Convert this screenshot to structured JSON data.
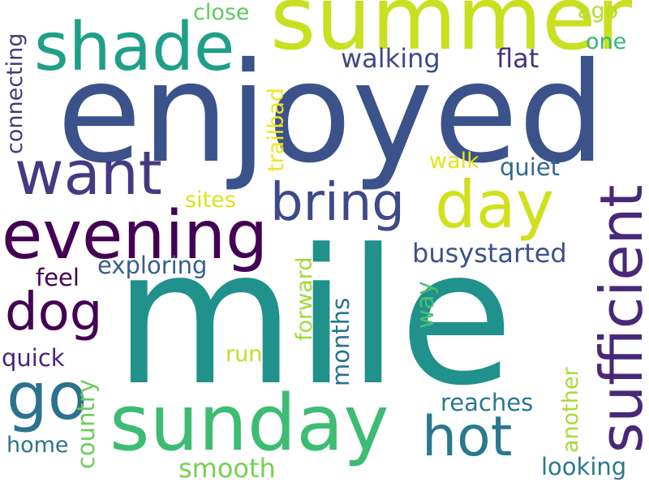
{
  "words": [
    {
      "id": "mile",
      "text": "mile",
      "color": "#21918c"
    },
    {
      "id": "enjoyed",
      "text": "enjoyed",
      "color": "#3b528b"
    },
    {
      "id": "summer",
      "text": "summer",
      "color": "#c8e020"
    },
    {
      "id": "sufficient",
      "text": "sufficient",
      "color": "#482878"
    },
    {
      "id": "sunday",
      "text": "sunday",
      "color": "#3dbc74"
    },
    {
      "id": "shade",
      "text": "shade",
      "color": "#1f9f88"
    },
    {
      "id": "want",
      "text": "want",
      "color": "#443983"
    },
    {
      "id": "evening",
      "text": "evening",
      "color": "#440154"
    },
    {
      "id": "bring",
      "text": "bring",
      "color": "#3e4989"
    },
    {
      "id": "day",
      "text": "day",
      "color": "#d0e11c"
    },
    {
      "id": "dog",
      "text": "dog",
      "color": "#440154"
    },
    {
      "id": "go",
      "text": "go",
      "color": "#2c728e"
    },
    {
      "id": "hot",
      "text": "hot",
      "color": "#2a788e"
    },
    {
      "id": "walking",
      "text": "walking",
      "color": "#3e4989"
    },
    {
      "id": "flat",
      "text": "flat",
      "color": "#46337e"
    },
    {
      "id": "close",
      "text": "close",
      "color": "#5ec962"
    },
    {
      "id": "ago",
      "text": "ago",
      "color": "#b5de2b"
    },
    {
      "id": "one",
      "text": "one",
      "color": "#35b779"
    },
    {
      "id": "quiet",
      "text": "quiet",
      "color": "#31688e"
    },
    {
      "id": "walk",
      "text": "walk",
      "color": "#e5e419"
    },
    {
      "id": "sites",
      "text": "sites",
      "color": "#dde318"
    },
    {
      "id": "busystarted",
      "text": "busystarted",
      "color": "#3b528b"
    },
    {
      "id": "exploring",
      "text": "exploring",
      "color": "#355f8d"
    },
    {
      "id": "feel",
      "text": "feel",
      "color": "#440154"
    },
    {
      "id": "quick",
      "text": "quick",
      "color": "#482475"
    },
    {
      "id": "run",
      "text": "run",
      "color": "#bddf26"
    },
    {
      "id": "reaches",
      "text": "reaches",
      "color": "#2a788e"
    },
    {
      "id": "home",
      "text": "home",
      "color": "#2c728e"
    },
    {
      "id": "smooth",
      "text": "smooth",
      "color": "#75d054"
    },
    {
      "id": "looking",
      "text": "looking",
      "color": "#2a788e"
    },
    {
      "id": "connecting",
      "text": "connecting",
      "color": "#453781"
    },
    {
      "id": "trailbad",
      "text": "trailbad",
      "color": "#f1e51d"
    },
    {
      "id": "forward",
      "text": "forward",
      "color": "#a2da37"
    },
    {
      "id": "months",
      "text": "months",
      "color": "#2c728e"
    },
    {
      "id": "way",
      "text": "way",
      "color": "#4ac16d"
    },
    {
      "id": "country",
      "text": "country",
      "color": "#6ccd5a"
    },
    {
      "id": "another",
      "text": "another",
      "color": "#a8db34"
    }
  ]
}
